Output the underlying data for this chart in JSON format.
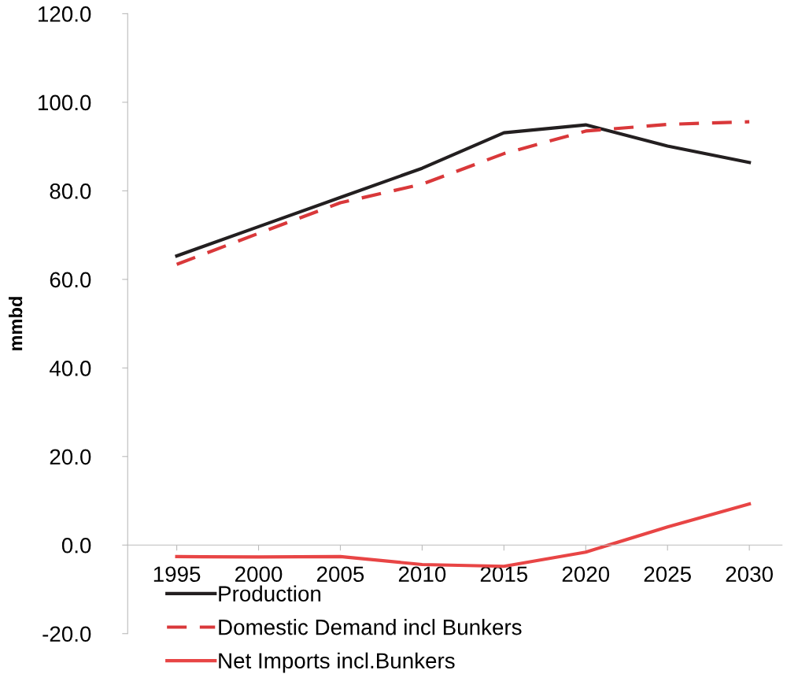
{
  "chart_data": {
    "type": "line",
    "ylabel": "mmbd",
    "categories": [
      "1995",
      "2000",
      "2005",
      "2010",
      "2015",
      "2020",
      "2025",
      "2030"
    ],
    "series": [
      {
        "name": "Production",
        "color": "#231f20",
        "line_style": "solid",
        "values": [
          65.3,
          71.9,
          78.5,
          85.1,
          93.1,
          94.9,
          90.1,
          86.4
        ]
      },
      {
        "name": "Domestic Demand incl Bunkers",
        "color": "#d9383a",
        "line_style": "dashed",
        "values": [
          63.4,
          70.4,
          77.3,
          81.5,
          88.4,
          93.5,
          95.0,
          95.6
        ]
      },
      {
        "name": "Net Imports incl.Bunkers",
        "color": "#e84545",
        "line_style": "solid",
        "values": [
          -2.6,
          -2.7,
          -2.6,
          -4.4,
          -4.8,
          -1.6,
          4.1,
          9.3
        ]
      }
    ],
    "ylim": [
      -20,
      120
    ],
    "yticks": [
      {
        "value": -20,
        "label": "-20.0"
      },
      {
        "value": 0,
        "label": "0.0"
      },
      {
        "value": 20,
        "label": "20.0"
      },
      {
        "value": 40,
        "label": "40.0"
      },
      {
        "value": 60,
        "label": "60.0"
      },
      {
        "value": 80,
        "label": "80.0"
      },
      {
        "value": 100,
        "label": "100.0"
      },
      {
        "value": 120,
        "label": "120.0"
      }
    ],
    "legend": "bottom left",
    "grid": false,
    "marker": "none"
  }
}
